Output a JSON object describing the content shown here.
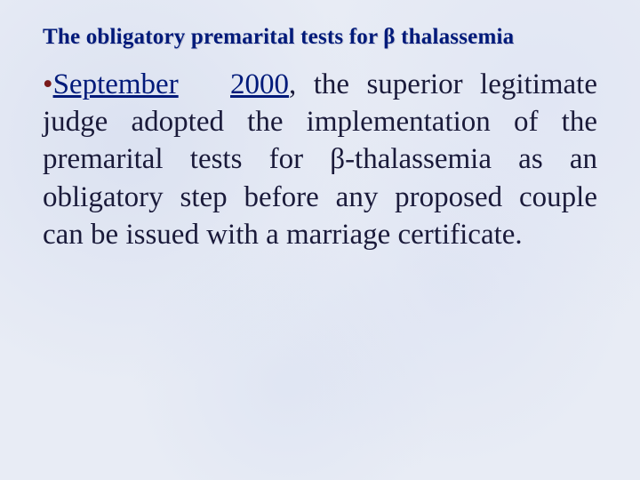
{
  "slide": {
    "background_color": "#e8ecf5",
    "title": {
      "text": "The obligatory premarital tests for β thalassemia",
      "color": "#001a7a",
      "font_size_pt": 18,
      "font_weight": "bold",
      "font_family": "Times New Roman"
    },
    "bullet": {
      "symbol": "•",
      "color": "#7a1a1a",
      "font_size_pt": 24
    },
    "body": {
      "emph_month": "September",
      "emph_year": "2000",
      "rest": ", the superior legitimate judge adopted the implementation of the premarital tests for β-thalassemia as an obligatory step before any proposed couple can be issued with a marriage certificate.",
      "color": "#1a1a3a",
      "font_size_pt": 24,
      "font_family": "Times New Roman",
      "align": "justify",
      "emph_color": "#001a7a"
    }
  }
}
